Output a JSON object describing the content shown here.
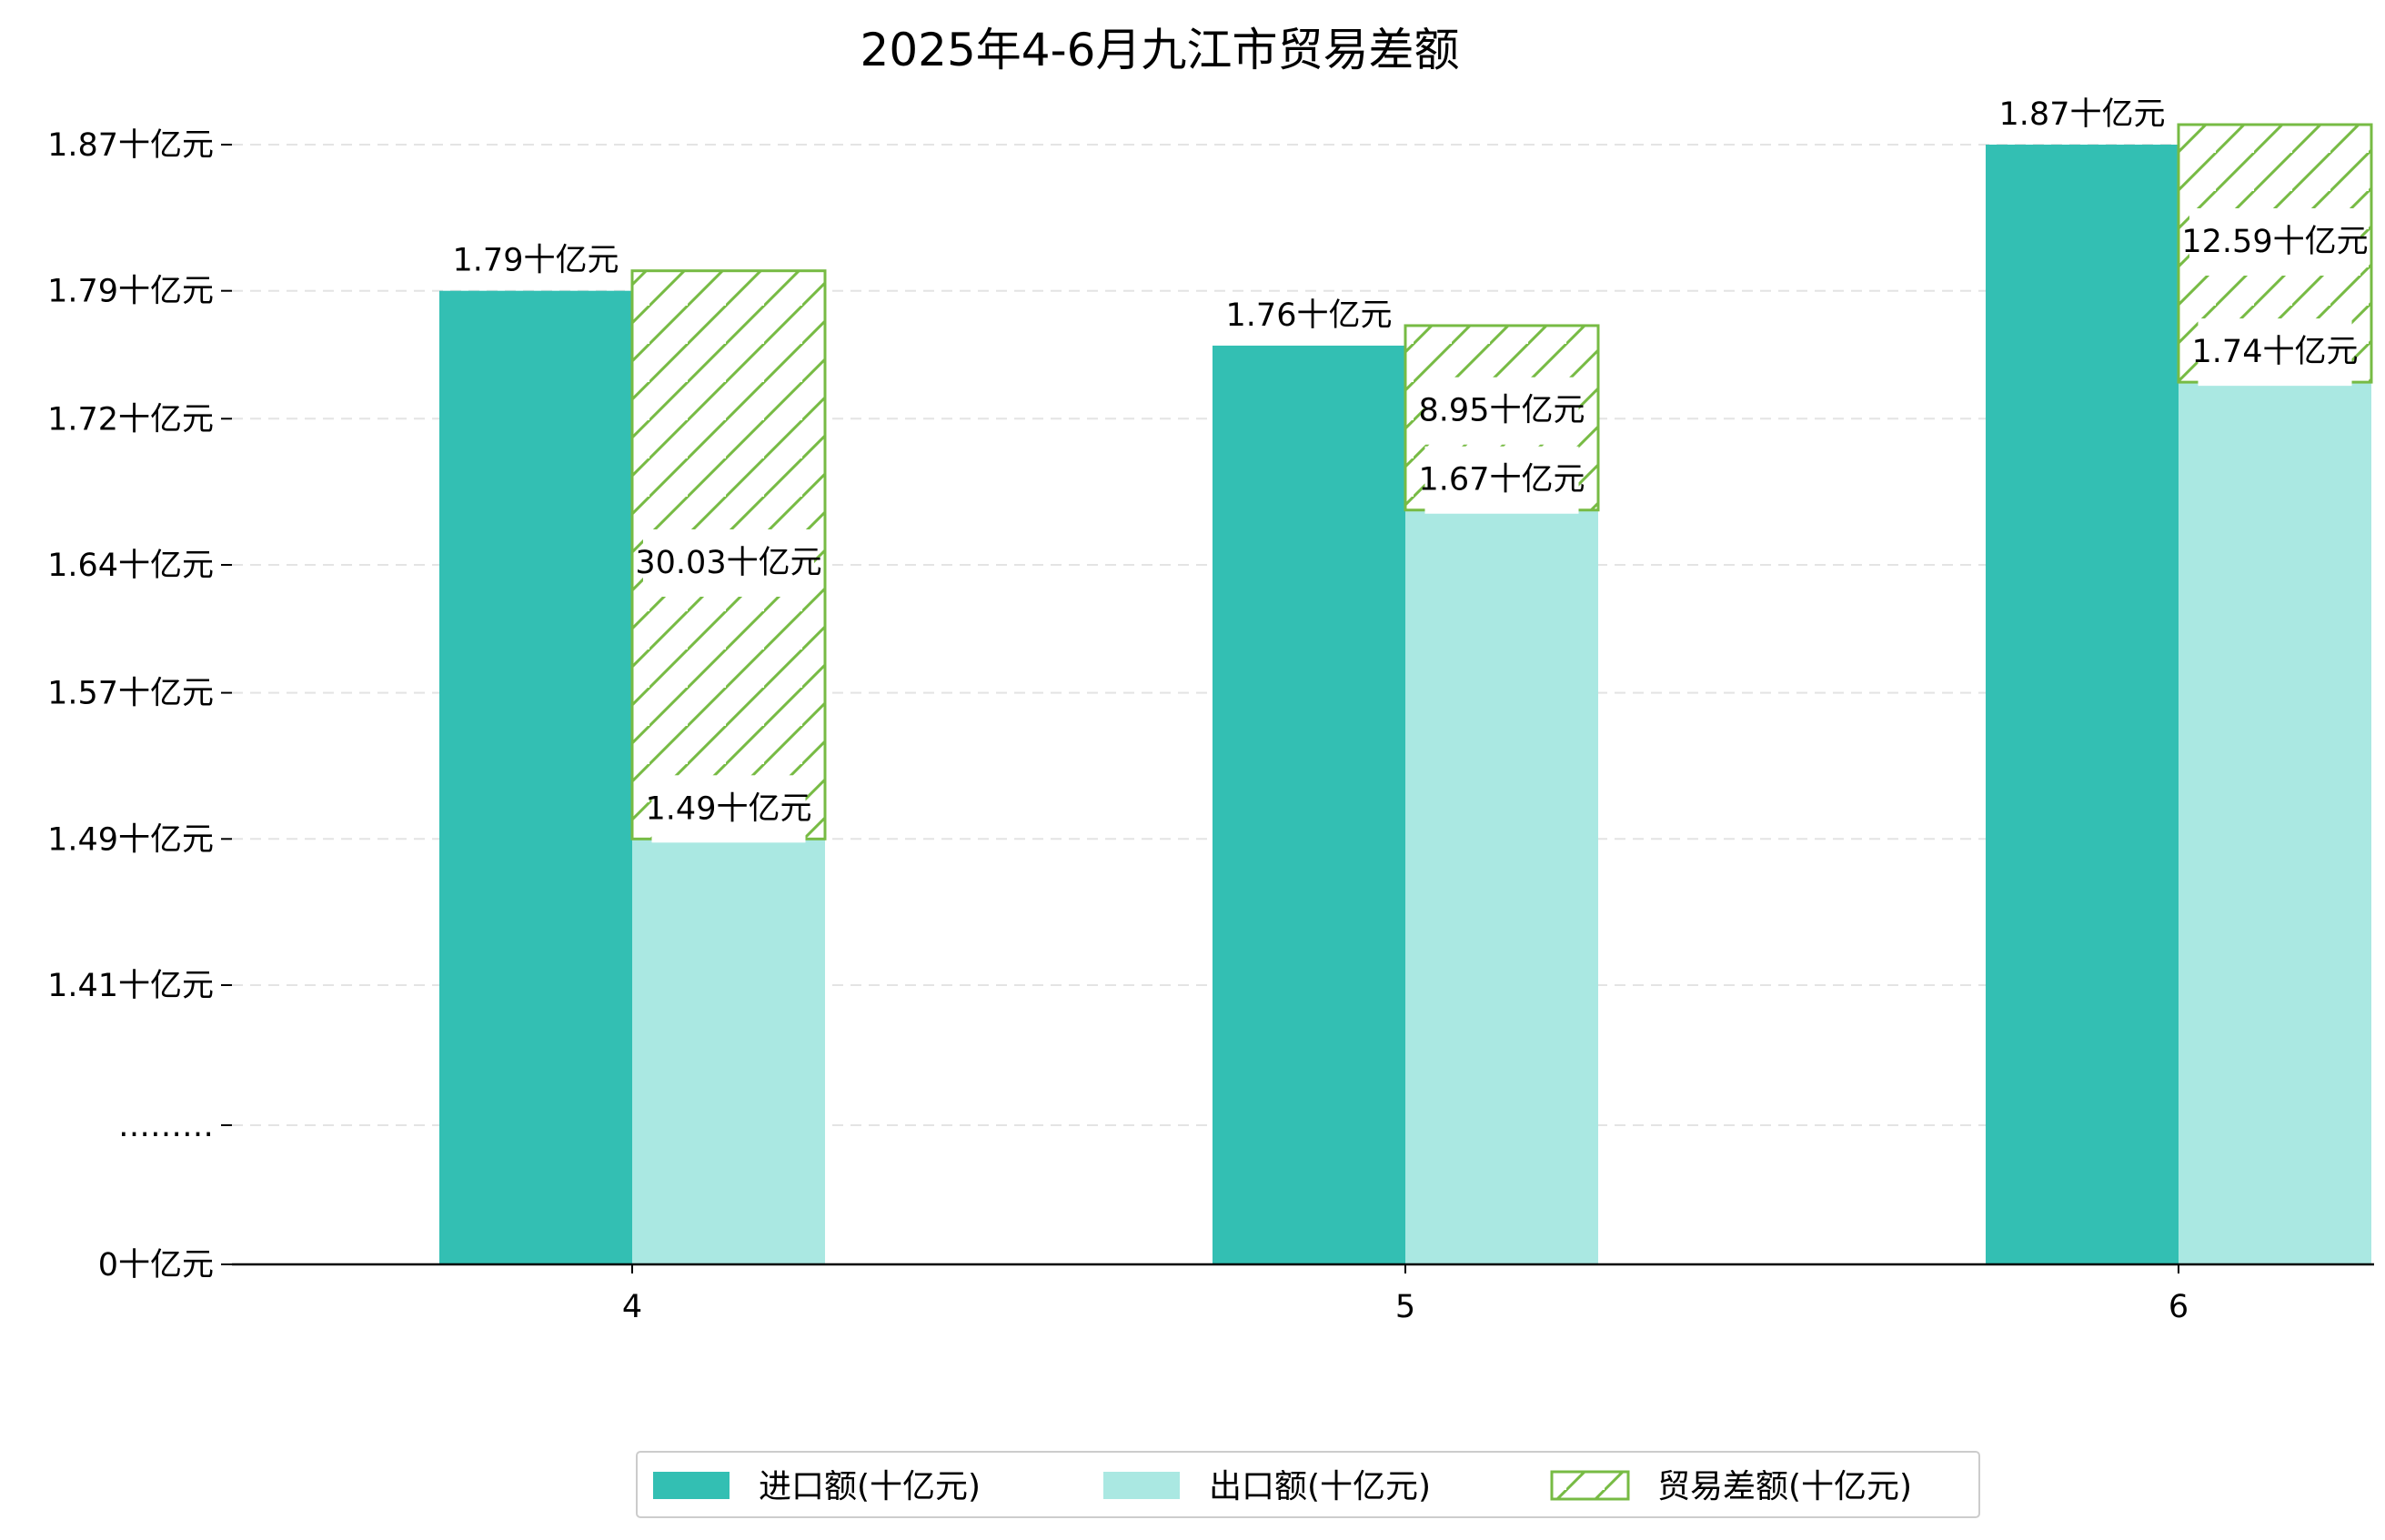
{
  "chart_data": {
    "type": "bar",
    "title": "2025年4-6月九江市贸易差额",
    "xlabel": "",
    "ylabel": "",
    "categories": [
      "4",
      "5",
      "6"
    ],
    "unit": "十亿元",
    "series": [
      {
        "name": "进口额(十亿元)",
        "values": [
          1.79,
          1.76,
          1.87
        ],
        "labels": [
          "1.79十亿元",
          "1.76十亿元",
          "1.87十亿元"
        ],
        "color": "#33bfb3"
      },
      {
        "name": "出口额(十亿元)",
        "values": [
          1.49,
          1.67,
          1.74
        ],
        "labels": [
          "1.49十亿元",
          "1.67十亿元",
          "1.74十亿元"
        ],
        "color": "#aae8e2"
      },
      {
        "name": "贸易差额(十亿元)",
        "values": [
          30.03,
          8.95,
          12.59
        ],
        "labels": [
          "30.03十亿元",
          "8.95十亿元",
          "12.59十亿元"
        ],
        "color": "#77bb44",
        "pattern": "hatch"
      }
    ],
    "y_ticks": [
      "0十亿元",
      "………",
      "1.41十亿元",
      "1.49十亿元",
      "1.57十亿元",
      "1.64十亿元",
      "1.72十亿元",
      "1.79十亿元",
      "1.87十亿元"
    ],
    "y_tick_values": [
      0,
      null,
      1.41,
      1.49,
      1.57,
      1.64,
      1.72,
      1.79,
      1.87
    ],
    "y_axis_break": true,
    "ylim": [
      1.26,
      1.87
    ],
    "grid": "horizontal-dashed",
    "legend_position": "bottom-center"
  }
}
